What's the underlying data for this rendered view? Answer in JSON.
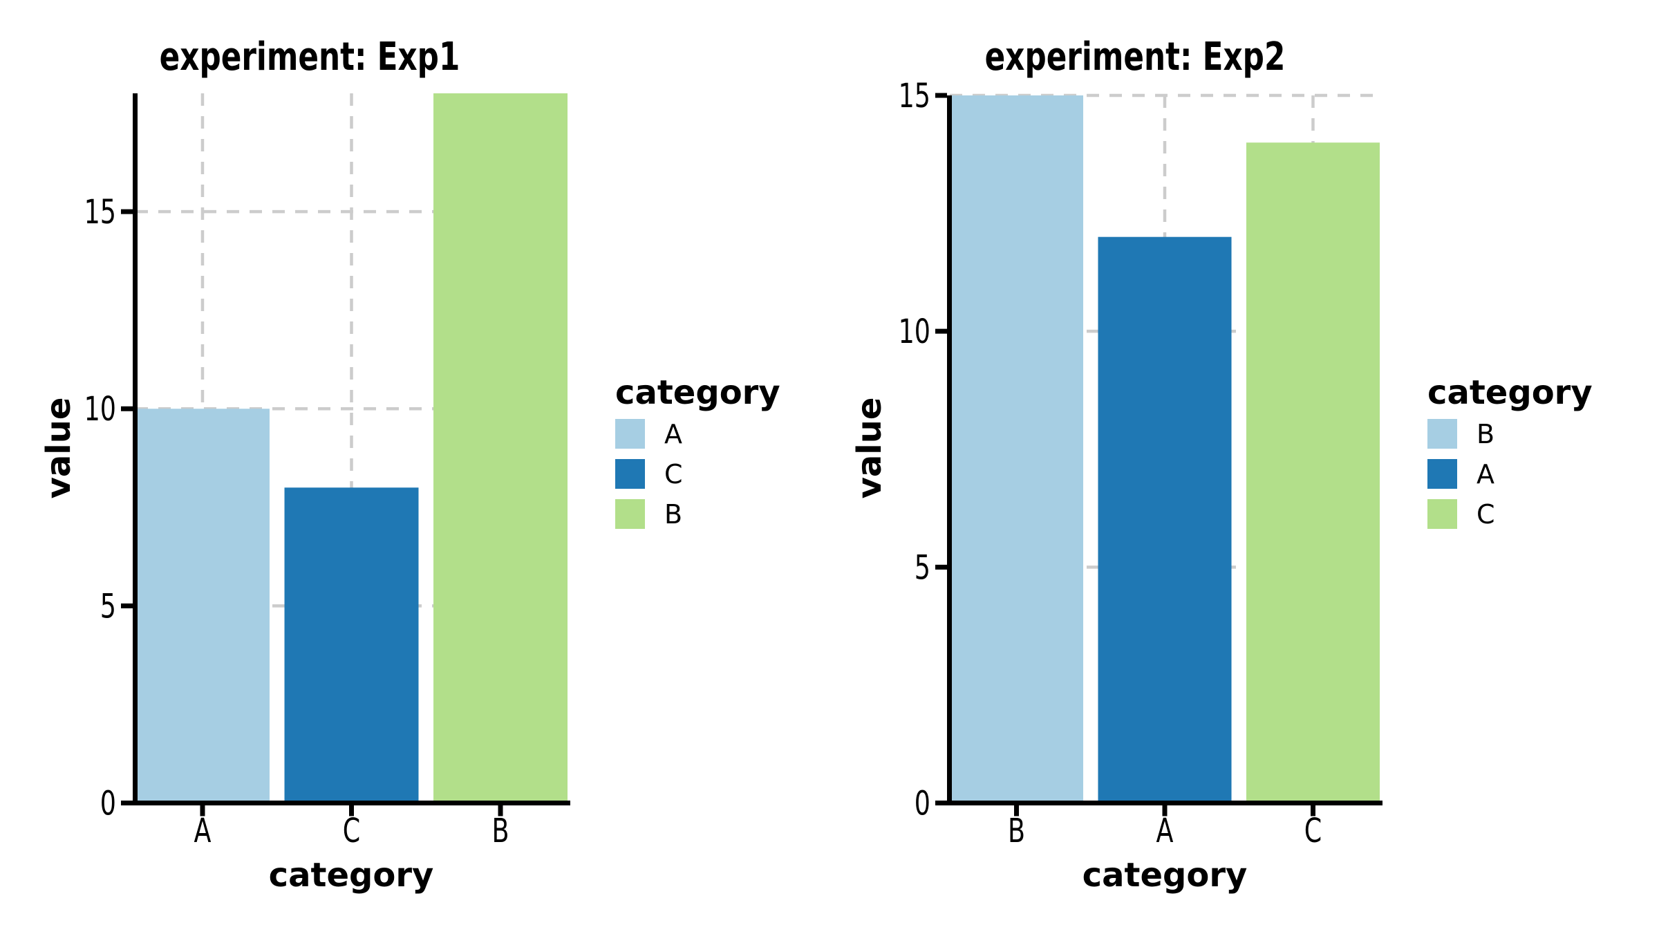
{
  "figure": {
    "background": "#ffffff",
    "axis_color": "#000000",
    "grid_color": "#cccccc"
  },
  "chart_data": [
    {
      "type": "bar",
      "title": "experiment: Exp1",
      "xlabel": "category",
      "ylabel": "value",
      "categories": [
        "A",
        "C",
        "B"
      ],
      "values": [
        10,
        8,
        18
      ],
      "bar_colors": [
        "#a6cee3",
        "#1f78b4",
        "#b2df8a"
      ],
      "ylim": [
        0,
        18
      ],
      "yticks": [
        0,
        5,
        10,
        15
      ],
      "grid": "dashed, horizontal and vertical, behind bars",
      "legend": {
        "title": "category",
        "position": "right",
        "entries": [
          {
            "label": "A",
            "color": "#a6cee3"
          },
          {
            "label": "C",
            "color": "#1f78b4"
          },
          {
            "label": "B",
            "color": "#b2df8a"
          }
        ]
      }
    },
    {
      "type": "bar",
      "title": "experiment: Exp2",
      "xlabel": "category",
      "ylabel": "value",
      "categories": [
        "B",
        "A",
        "C"
      ],
      "values": [
        15,
        12,
        14
      ],
      "bar_colors": [
        "#a6cee3",
        "#1f78b4",
        "#b2df8a"
      ],
      "ylim": [
        0,
        15
      ],
      "yticks": [
        0,
        5,
        10,
        15
      ],
      "grid": "dashed, horizontal and vertical, behind bars",
      "legend": {
        "title": "category",
        "position": "right",
        "entries": [
          {
            "label": "B",
            "color": "#a6cee3"
          },
          {
            "label": "A",
            "color": "#1f78b4"
          },
          {
            "label": "C",
            "color": "#b2df8a"
          }
        ]
      }
    }
  ]
}
